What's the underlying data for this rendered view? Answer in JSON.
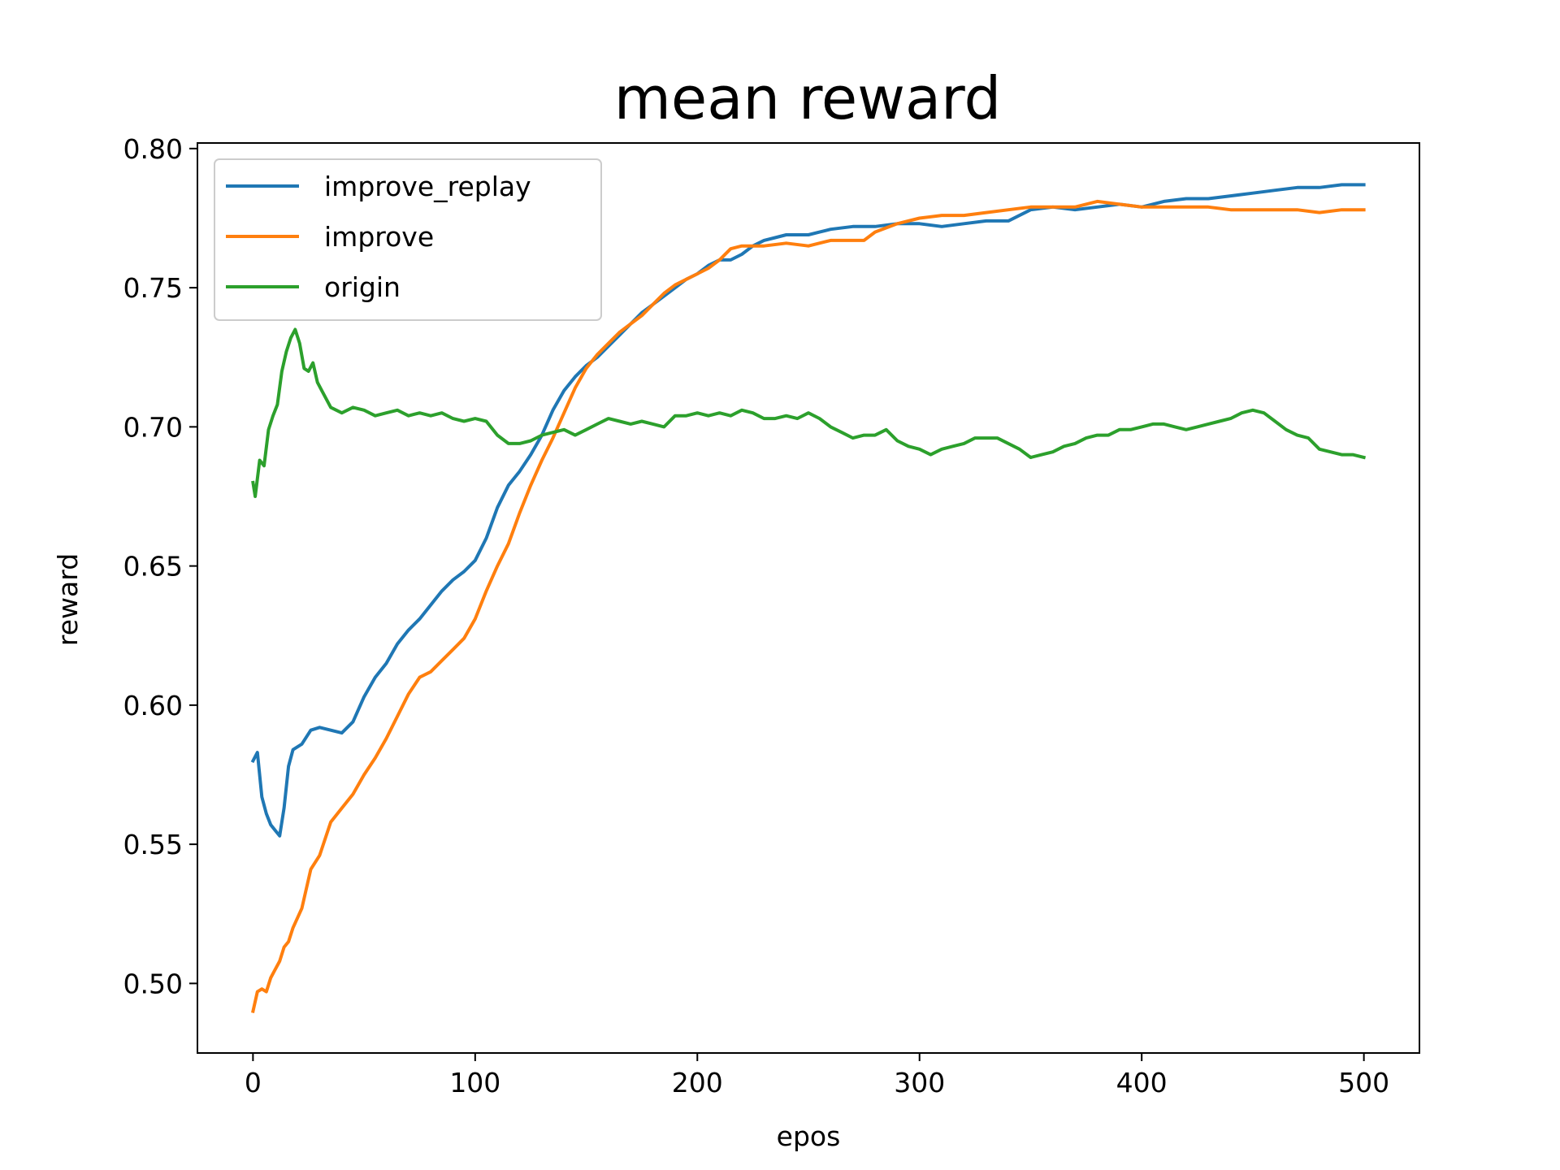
{
  "chart_data": {
    "type": "line",
    "title": "mean reward",
    "xlabel": "epos",
    "ylabel": "reward",
    "xlim": [
      -25,
      525
    ],
    "ylim": [
      0.475,
      0.802
    ],
    "xticks": [
      0,
      100,
      200,
      300,
      400,
      500
    ],
    "xtick_labels": [
      "0",
      "100",
      "200",
      "300",
      "400",
      "500"
    ],
    "yticks": [
      0.5,
      0.55,
      0.6,
      0.65,
      0.7,
      0.75,
      0.8
    ],
    "ytick_labels": [
      "0.50",
      "0.55",
      "0.60",
      "0.65",
      "0.70",
      "0.75",
      "0.80"
    ],
    "grid": false,
    "legend_position": "top-left",
    "series": [
      {
        "name": "improve_replay",
        "color": "#1f77b4",
        "points": [
          [
            0,
            0.58
          ],
          [
            2,
            0.583
          ],
          [
            4,
            0.567
          ],
          [
            6,
            0.561
          ],
          [
            8,
            0.557
          ],
          [
            10,
            0.555
          ],
          [
            12,
            0.553
          ],
          [
            14,
            0.563
          ],
          [
            16,
            0.578
          ],
          [
            18,
            0.584
          ],
          [
            22,
            0.586
          ],
          [
            26,
            0.591
          ],
          [
            30,
            0.592
          ],
          [
            35,
            0.591
          ],
          [
            40,
            0.59
          ],
          [
            45,
            0.594
          ],
          [
            50,
            0.603
          ],
          [
            55,
            0.61
          ],
          [
            60,
            0.615
          ],
          [
            65,
            0.622
          ],
          [
            70,
            0.627
          ],
          [
            75,
            0.631
          ],
          [
            80,
            0.636
          ],
          [
            85,
            0.641
          ],
          [
            90,
            0.645
          ],
          [
            95,
            0.648
          ],
          [
            100,
            0.652
          ],
          [
            105,
            0.66
          ],
          [
            110,
            0.671
          ],
          [
            115,
            0.679
          ],
          [
            120,
            0.684
          ],
          [
            125,
            0.69
          ],
          [
            130,
            0.697
          ],
          [
            135,
            0.706
          ],
          [
            140,
            0.713
          ],
          [
            145,
            0.718
          ],
          [
            150,
            0.722
          ],
          [
            155,
            0.725
          ],
          [
            160,
            0.729
          ],
          [
            165,
            0.733
          ],
          [
            170,
            0.737
          ],
          [
            175,
            0.741
          ],
          [
            180,
            0.744
          ],
          [
            185,
            0.747
          ],
          [
            190,
            0.75
          ],
          [
            195,
            0.753
          ],
          [
            200,
            0.755
          ],
          [
            205,
            0.758
          ],
          [
            210,
            0.76
          ],
          [
            215,
            0.76
          ],
          [
            220,
            0.762
          ],
          [
            225,
            0.765
          ],
          [
            230,
            0.767
          ],
          [
            235,
            0.768
          ],
          [
            240,
            0.769
          ],
          [
            245,
            0.769
          ],
          [
            250,
            0.769
          ],
          [
            255,
            0.77
          ],
          [
            260,
            0.771
          ],
          [
            270,
            0.772
          ],
          [
            280,
            0.772
          ],
          [
            290,
            0.773
          ],
          [
            300,
            0.773
          ],
          [
            310,
            0.772
          ],
          [
            320,
            0.773
          ],
          [
            330,
            0.774
          ],
          [
            340,
            0.774
          ],
          [
            350,
            0.778
          ],
          [
            360,
            0.779
          ],
          [
            370,
            0.778
          ],
          [
            380,
            0.779
          ],
          [
            390,
            0.78
          ],
          [
            400,
            0.779
          ],
          [
            410,
            0.781
          ],
          [
            420,
            0.782
          ],
          [
            430,
            0.782
          ],
          [
            440,
            0.783
          ],
          [
            450,
            0.784
          ],
          [
            460,
            0.785
          ],
          [
            470,
            0.786
          ],
          [
            480,
            0.786
          ],
          [
            490,
            0.787
          ],
          [
            500,
            0.787
          ]
        ]
      },
      {
        "name": "improve",
        "color": "#ff7f0e",
        "points": [
          [
            0,
            0.49
          ],
          [
            2,
            0.497
          ],
          [
            4,
            0.498
          ],
          [
            6,
            0.497
          ],
          [
            8,
            0.502
          ],
          [
            10,
            0.505
          ],
          [
            12,
            0.508
          ],
          [
            14,
            0.513
          ],
          [
            16,
            0.515
          ],
          [
            18,
            0.52
          ],
          [
            22,
            0.527
          ],
          [
            26,
            0.541
          ],
          [
            30,
            0.546
          ],
          [
            35,
            0.558
          ],
          [
            40,
            0.563
          ],
          [
            45,
            0.568
          ],
          [
            50,
            0.575
          ],
          [
            55,
            0.581
          ],
          [
            60,
            0.588
          ],
          [
            65,
            0.596
          ],
          [
            70,
            0.604
          ],
          [
            75,
            0.61
          ],
          [
            80,
            0.612
          ],
          [
            85,
            0.616
          ],
          [
            90,
            0.62
          ],
          [
            95,
            0.624
          ],
          [
            100,
            0.631
          ],
          [
            105,
            0.641
          ],
          [
            110,
            0.65
          ],
          [
            115,
            0.658
          ],
          [
            120,
            0.669
          ],
          [
            125,
            0.679
          ],
          [
            130,
            0.688
          ],
          [
            135,
            0.696
          ],
          [
            140,
            0.705
          ],
          [
            145,
            0.714
          ],
          [
            150,
            0.721
          ],
          [
            155,
            0.726
          ],
          [
            160,
            0.73
          ],
          [
            165,
            0.734
          ],
          [
            170,
            0.737
          ],
          [
            175,
            0.74
          ],
          [
            180,
            0.744
          ],
          [
            185,
            0.748
          ],
          [
            190,
            0.751
          ],
          [
            195,
            0.753
          ],
          [
            200,
            0.755
          ],
          [
            205,
            0.757
          ],
          [
            210,
            0.76
          ],
          [
            215,
            0.764
          ],
          [
            220,
            0.765
          ],
          [
            225,
            0.765
          ],
          [
            230,
            0.765
          ],
          [
            240,
            0.766
          ],
          [
            250,
            0.765
          ],
          [
            260,
            0.767
          ],
          [
            270,
            0.767
          ],
          [
            275,
            0.767
          ],
          [
            280,
            0.77
          ],
          [
            290,
            0.773
          ],
          [
            300,
            0.775
          ],
          [
            310,
            0.776
          ],
          [
            320,
            0.776
          ],
          [
            330,
            0.777
          ],
          [
            340,
            0.778
          ],
          [
            350,
            0.779
          ],
          [
            360,
            0.779
          ],
          [
            370,
            0.779
          ],
          [
            380,
            0.781
          ],
          [
            390,
            0.78
          ],
          [
            400,
            0.779
          ],
          [
            410,
            0.779
          ],
          [
            420,
            0.779
          ],
          [
            430,
            0.779
          ],
          [
            440,
            0.778
          ],
          [
            450,
            0.778
          ],
          [
            460,
            0.778
          ],
          [
            470,
            0.778
          ],
          [
            480,
            0.777
          ],
          [
            490,
            0.778
          ],
          [
            500,
            0.778
          ]
        ]
      },
      {
        "name": "origin",
        "color": "#2ca02c",
        "points": [
          [
            0,
            0.68
          ],
          [
            1,
            0.675
          ],
          [
            3,
            0.688
          ],
          [
            5,
            0.686
          ],
          [
            7,
            0.699
          ],
          [
            9,
            0.704
          ],
          [
            11,
            0.708
          ],
          [
            13,
            0.72
          ],
          [
            15,
            0.727
          ],
          [
            17,
            0.732
          ],
          [
            19,
            0.735
          ],
          [
            21,
            0.73
          ],
          [
            23,
            0.721
          ],
          [
            25,
            0.72
          ],
          [
            27,
            0.723
          ],
          [
            29,
            0.716
          ],
          [
            31,
            0.713
          ],
          [
            35,
            0.707
          ],
          [
            40,
            0.705
          ],
          [
            45,
            0.707
          ],
          [
            50,
            0.706
          ],
          [
            55,
            0.704
          ],
          [
            60,
            0.705
          ],
          [
            65,
            0.706
          ],
          [
            70,
            0.704
          ],
          [
            75,
            0.705
          ],
          [
            80,
            0.704
          ],
          [
            85,
            0.705
          ],
          [
            90,
            0.703
          ],
          [
            95,
            0.702
          ],
          [
            100,
            0.703
          ],
          [
            105,
            0.702
          ],
          [
            110,
            0.697
          ],
          [
            115,
            0.694
          ],
          [
            120,
            0.694
          ],
          [
            125,
            0.695
          ],
          [
            130,
            0.697
          ],
          [
            135,
            0.698
          ],
          [
            140,
            0.699
          ],
          [
            145,
            0.697
          ],
          [
            150,
            0.699
          ],
          [
            155,
            0.701
          ],
          [
            160,
            0.703
          ],
          [
            165,
            0.702
          ],
          [
            170,
            0.701
          ],
          [
            175,
            0.702
          ],
          [
            180,
            0.701
          ],
          [
            185,
            0.7
          ],
          [
            190,
            0.704
          ],
          [
            195,
            0.704
          ],
          [
            200,
            0.705
          ],
          [
            205,
            0.704
          ],
          [
            210,
            0.705
          ],
          [
            215,
            0.704
          ],
          [
            220,
            0.706
          ],
          [
            225,
            0.705
          ],
          [
            230,
            0.703
          ],
          [
            235,
            0.703
          ],
          [
            240,
            0.704
          ],
          [
            245,
            0.703
          ],
          [
            250,
            0.705
          ],
          [
            255,
            0.703
          ],
          [
            260,
            0.7
          ],
          [
            265,
            0.698
          ],
          [
            270,
            0.696
          ],
          [
            275,
            0.697
          ],
          [
            280,
            0.697
          ],
          [
            285,
            0.699
          ],
          [
            290,
            0.695
          ],
          [
            295,
            0.693
          ],
          [
            300,
            0.692
          ],
          [
            305,
            0.69
          ],
          [
            310,
            0.692
          ],
          [
            315,
            0.693
          ],
          [
            320,
            0.694
          ],
          [
            325,
            0.696
          ],
          [
            330,
            0.696
          ],
          [
            335,
            0.696
          ],
          [
            340,
            0.694
          ],
          [
            345,
            0.692
          ],
          [
            350,
            0.689
          ],
          [
            355,
            0.69
          ],
          [
            360,
            0.691
          ],
          [
            365,
            0.693
          ],
          [
            370,
            0.694
          ],
          [
            375,
            0.696
          ],
          [
            380,
            0.697
          ],
          [
            385,
            0.697
          ],
          [
            390,
            0.699
          ],
          [
            395,
            0.699
          ],
          [
            400,
            0.7
          ],
          [
            405,
            0.701
          ],
          [
            410,
            0.701
          ],
          [
            415,
            0.7
          ],
          [
            420,
            0.699
          ],
          [
            425,
            0.7
          ],
          [
            430,
            0.701
          ],
          [
            435,
            0.702
          ],
          [
            440,
            0.703
          ],
          [
            445,
            0.705
          ],
          [
            450,
            0.706
          ],
          [
            455,
            0.705
          ],
          [
            460,
            0.702
          ],
          [
            465,
            0.699
          ],
          [
            470,
            0.697
          ],
          [
            475,
            0.696
          ],
          [
            480,
            0.692
          ],
          [
            485,
            0.691
          ],
          [
            490,
            0.69
          ],
          [
            495,
            0.69
          ],
          [
            500,
            0.689
          ]
        ]
      }
    ]
  }
}
